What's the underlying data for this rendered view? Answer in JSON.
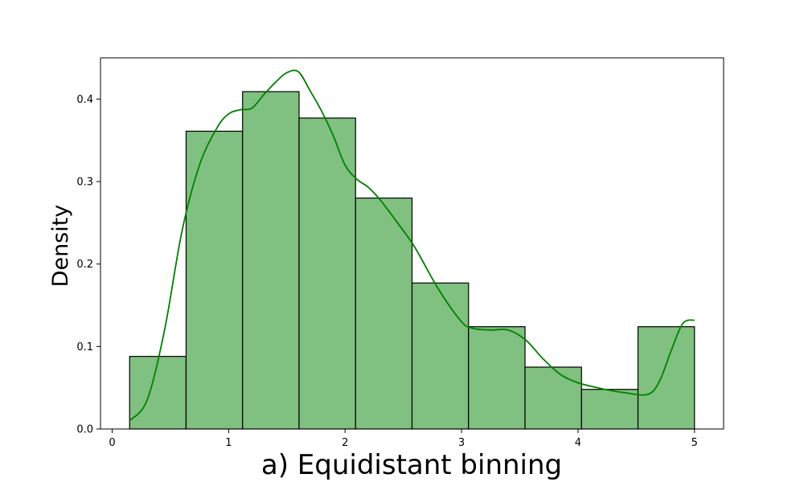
{
  "chart_data": {
    "type": "bar",
    "subtype": "histogram-with-kde",
    "xlabel": "a) Equidistant binning",
    "ylabel": "Density",
    "xlim": [
      -0.1,
      5.25
    ],
    "ylim": [
      0,
      0.45
    ],
    "xticks": [
      0,
      1,
      2,
      3,
      4,
      5
    ],
    "yticks": [
      0.0,
      0.1,
      0.2,
      0.3,
      0.4
    ],
    "bin_edges": [
      0.15,
      0.635,
      1.12,
      1.605,
      2.09,
      2.575,
      3.06,
      3.545,
      4.03,
      4.515,
      5.0
    ],
    "values": [
      0.088,
      0.361,
      0.409,
      0.377,
      0.28,
      0.177,
      0.124,
      0.075,
      0.048,
      0.124
    ],
    "kde": {
      "x": [
        0.15,
        0.3,
        0.45,
        0.6,
        0.75,
        0.9,
        1.0,
        1.1,
        1.2,
        1.3,
        1.4,
        1.5,
        1.6,
        1.7,
        1.8,
        1.9,
        2.0,
        2.1,
        2.2,
        2.3,
        2.45,
        2.6,
        2.8,
        3.0,
        3.1,
        3.25,
        3.4,
        3.55,
        3.7,
        3.85,
        4.0,
        4.2,
        4.4,
        4.6,
        4.7,
        4.8,
        4.9,
        5.0
      ],
      "y": [
        0.01,
        0.035,
        0.12,
        0.24,
        0.32,
        0.365,
        0.382,
        0.387,
        0.389,
        0.405,
        0.42,
        0.432,
        0.433,
        0.41,
        0.385,
        0.355,
        0.32,
        0.303,
        0.293,
        0.278,
        0.25,
        0.22,
        0.17,
        0.13,
        0.122,
        0.12,
        0.12,
        0.108,
        0.085,
        0.066,
        0.056,
        0.049,
        0.044,
        0.042,
        0.058,
        0.095,
        0.128,
        0.132
      ]
    },
    "colors": {
      "bar_fill": "#80c080",
      "bar_edge": "#000000",
      "kde_line": "#008000"
    },
    "grid": false,
    "legend": "none"
  }
}
